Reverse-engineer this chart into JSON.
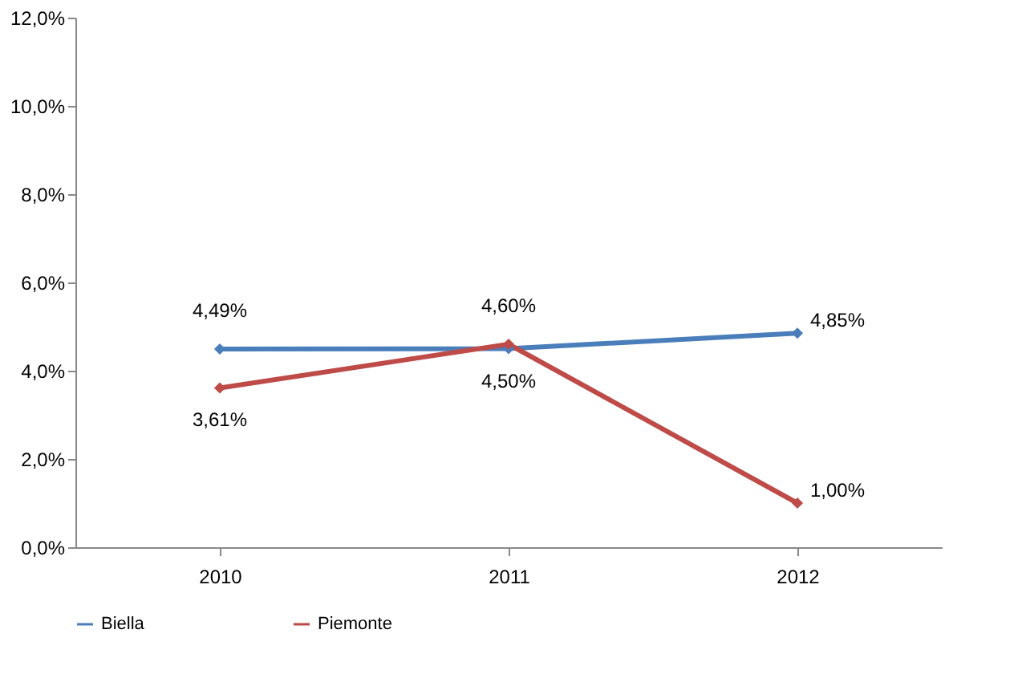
{
  "chart_data": {
    "type": "line",
    "categories": [
      "2010",
      "2011",
      "2012"
    ],
    "series": [
      {
        "name": "Biella",
        "color": "#4a7ebb",
        "values": [
          4.49,
          4.5,
          4.85
        ],
        "value_labels": [
          "4,49%",
          "4,50%",
          "4,85%"
        ]
      },
      {
        "name": "Piemonte",
        "color": "#be4b48",
        "values": [
          3.61,
          4.6,
          1.0
        ],
        "value_labels": [
          "3,61%",
          "4,60%",
          "1,00%"
        ]
      }
    ],
    "ylim": [
      0,
      12
    ],
    "yticks": [
      {
        "value": 0,
        "label": "0,0%"
      },
      {
        "value": 2,
        "label": "2,0%"
      },
      {
        "value": 4,
        "label": "4,0%"
      },
      {
        "value": 6,
        "label": "6,0%"
      },
      {
        "value": 8,
        "label": "8,0%"
      },
      {
        "value": 10,
        "label": "10,0%"
      },
      {
        "value": 12,
        "label": "12,0%"
      }
    ],
    "grid": false,
    "legend": "bottom",
    "marker": "diamond",
    "line_style": "solid"
  }
}
